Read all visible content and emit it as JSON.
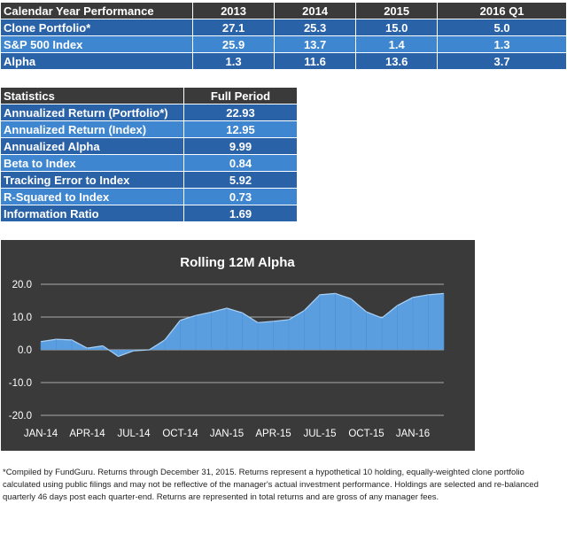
{
  "performance_table": {
    "headers": [
      "Calendar Year Performance",
      "2013",
      "2014",
      "2015",
      "2016 Q1"
    ],
    "rows": [
      {
        "label": "Clone Portfolio*",
        "values": [
          "27.1",
          "25.3",
          "15.0",
          "5.0"
        ]
      },
      {
        "label": "S&P 500 Index",
        "values": [
          "25.9",
          "13.7",
          "1.4",
          "1.3"
        ]
      },
      {
        "label": "Alpha",
        "values": [
          "1.3",
          "11.6",
          "13.6",
          "3.7"
        ]
      }
    ]
  },
  "statistics_table": {
    "headers": [
      "Statistics",
      "Full Period"
    ],
    "rows": [
      {
        "label": "Annualized Return (Portfolio*)",
        "value": "22.93"
      },
      {
        "label": "Annualized Return (Index)",
        "value": "12.95"
      },
      {
        "label": "Annualized Alpha",
        "value": "9.99"
      },
      {
        "label": "Beta to Index",
        "value": "0.84"
      },
      {
        "label": "Tracking Error to Index",
        "value": "5.92"
      },
      {
        "label": "R-Squared to Index",
        "value": "0.73"
      },
      {
        "label": "Information Ratio",
        "value": "1.69"
      }
    ]
  },
  "chart_data": {
    "type": "area",
    "title": "Rolling 12M Alpha",
    "xlabel": "",
    "ylabel": "",
    "ylim": [
      -20,
      20
    ],
    "yticks": [
      "20.0",
      "10.0",
      "0.0",
      "-10.0",
      "-20.0"
    ],
    "ytick_values": [
      20,
      10,
      0,
      -10,
      -20
    ],
    "x_tick_labels": [
      "JAN-14",
      "APR-14",
      "JUL-14",
      "OCT-14",
      "JAN-15",
      "APR-15",
      "JUL-15",
      "OCT-15",
      "JAN-16"
    ],
    "x": [
      "2014-01",
      "2014-02",
      "2014-03",
      "2014-04",
      "2014-05",
      "2014-06",
      "2014-07",
      "2014-08",
      "2014-09",
      "2014-10",
      "2014-11",
      "2014-12",
      "2015-01",
      "2015-02",
      "2015-03",
      "2015-04",
      "2015-05",
      "2015-06",
      "2015-07",
      "2015-08",
      "2015-09",
      "2015-10",
      "2015-11",
      "2015-12",
      "2016-01",
      "2016-02",
      "2016-03"
    ],
    "series": [
      {
        "values": [
          2.5,
          3.2,
          3.0,
          0.5,
          1.2,
          -2.0,
          -0.3,
          0.0,
          3.0,
          9.0,
          10.5,
          11.5,
          12.7,
          11.3,
          8.3,
          8.7,
          9.2,
          12.0,
          16.8,
          17.2,
          15.6,
          11.6,
          9.7,
          13.5,
          16.0,
          16.8,
          17.2
        ]
      }
    ],
    "grid": true,
    "colors": {
      "background": "#3a3a3a",
      "fill": "#5b9ee0",
      "line": "#a9d0f5",
      "grid": "#d0d0d0",
      "text": "#ffffff"
    }
  },
  "footnote": "*Compiled by FundGuru. Returns through December 31, 2015. Returns represent a hypothetical 10 holding, equally-weighted clone portfolio calculated using public filings and may not be reflective of the manager's actual investment performance. Holdings are selected and re-balanced quarterly 46 days post each quarter-end. Returns are represented in total returns and are gross of any manager fees."
}
